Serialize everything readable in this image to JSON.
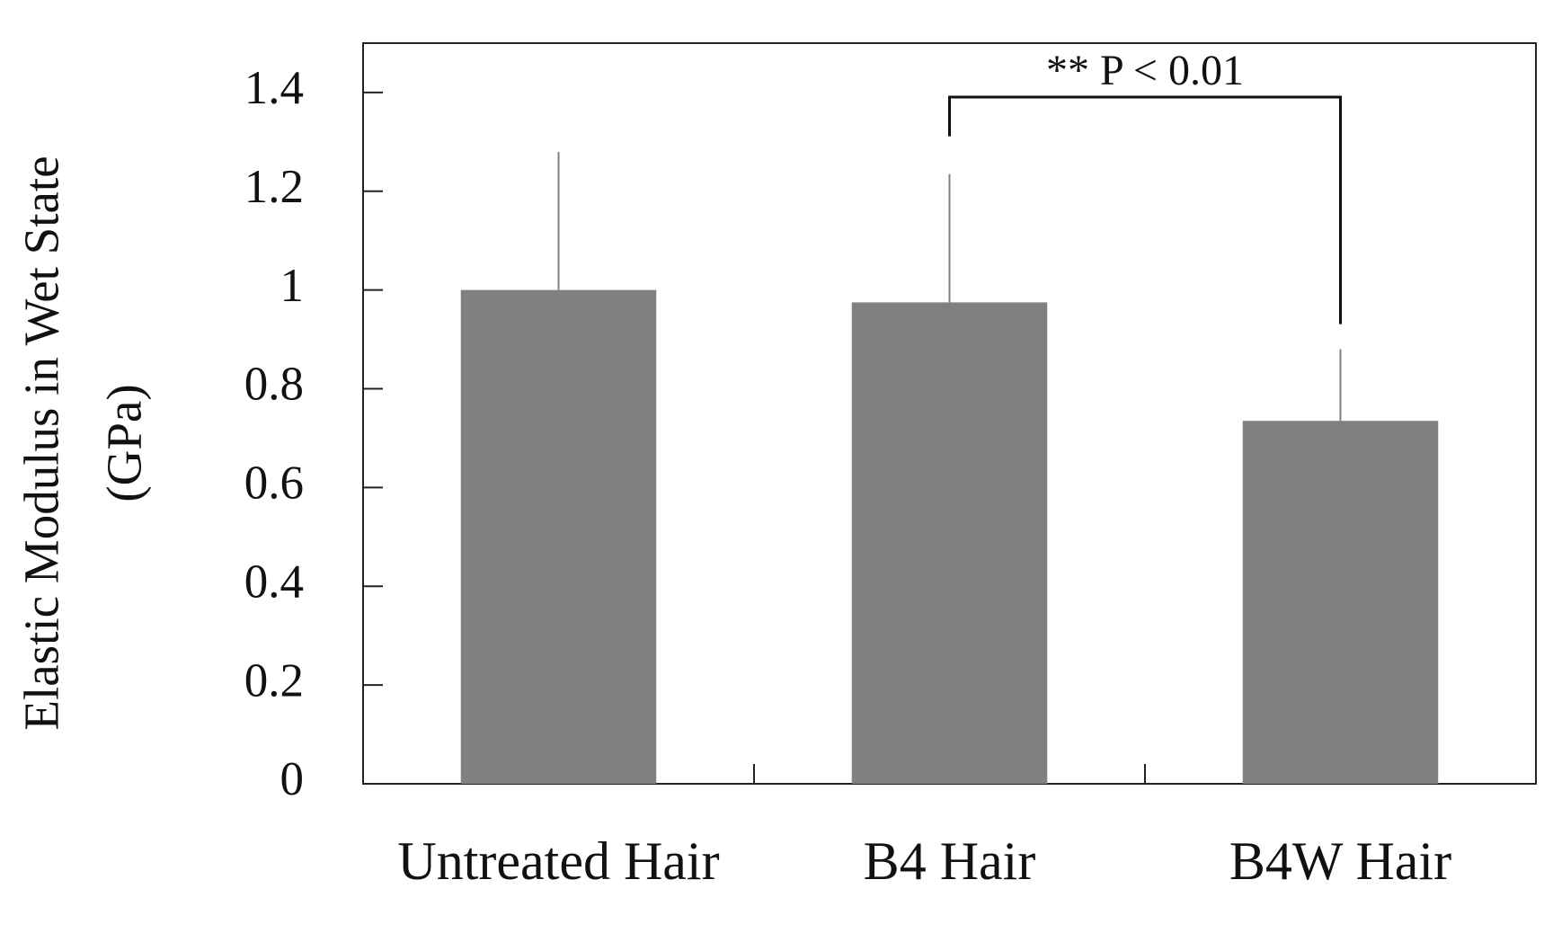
{
  "chart_data": {
    "type": "bar",
    "y_label": [
      "Elastic Modulus in Wet State",
      "(GPa)"
    ],
    "categories": [
      "Untreated Hair",
      "B4 Hair",
      "B4W Hair"
    ],
    "values": [
      1.0,
      0.975,
      0.735
    ],
    "errors": [
      0.28,
      0.26,
      0.145
    ],
    "color": "#808080",
    "ylim": [
      0,
      1.5
    ],
    "yticks": [
      0,
      0.2,
      0.4,
      0.6,
      0.8,
      1,
      1.2,
      1.4
    ],
    "annotation": "** P < 0.01"
  }
}
